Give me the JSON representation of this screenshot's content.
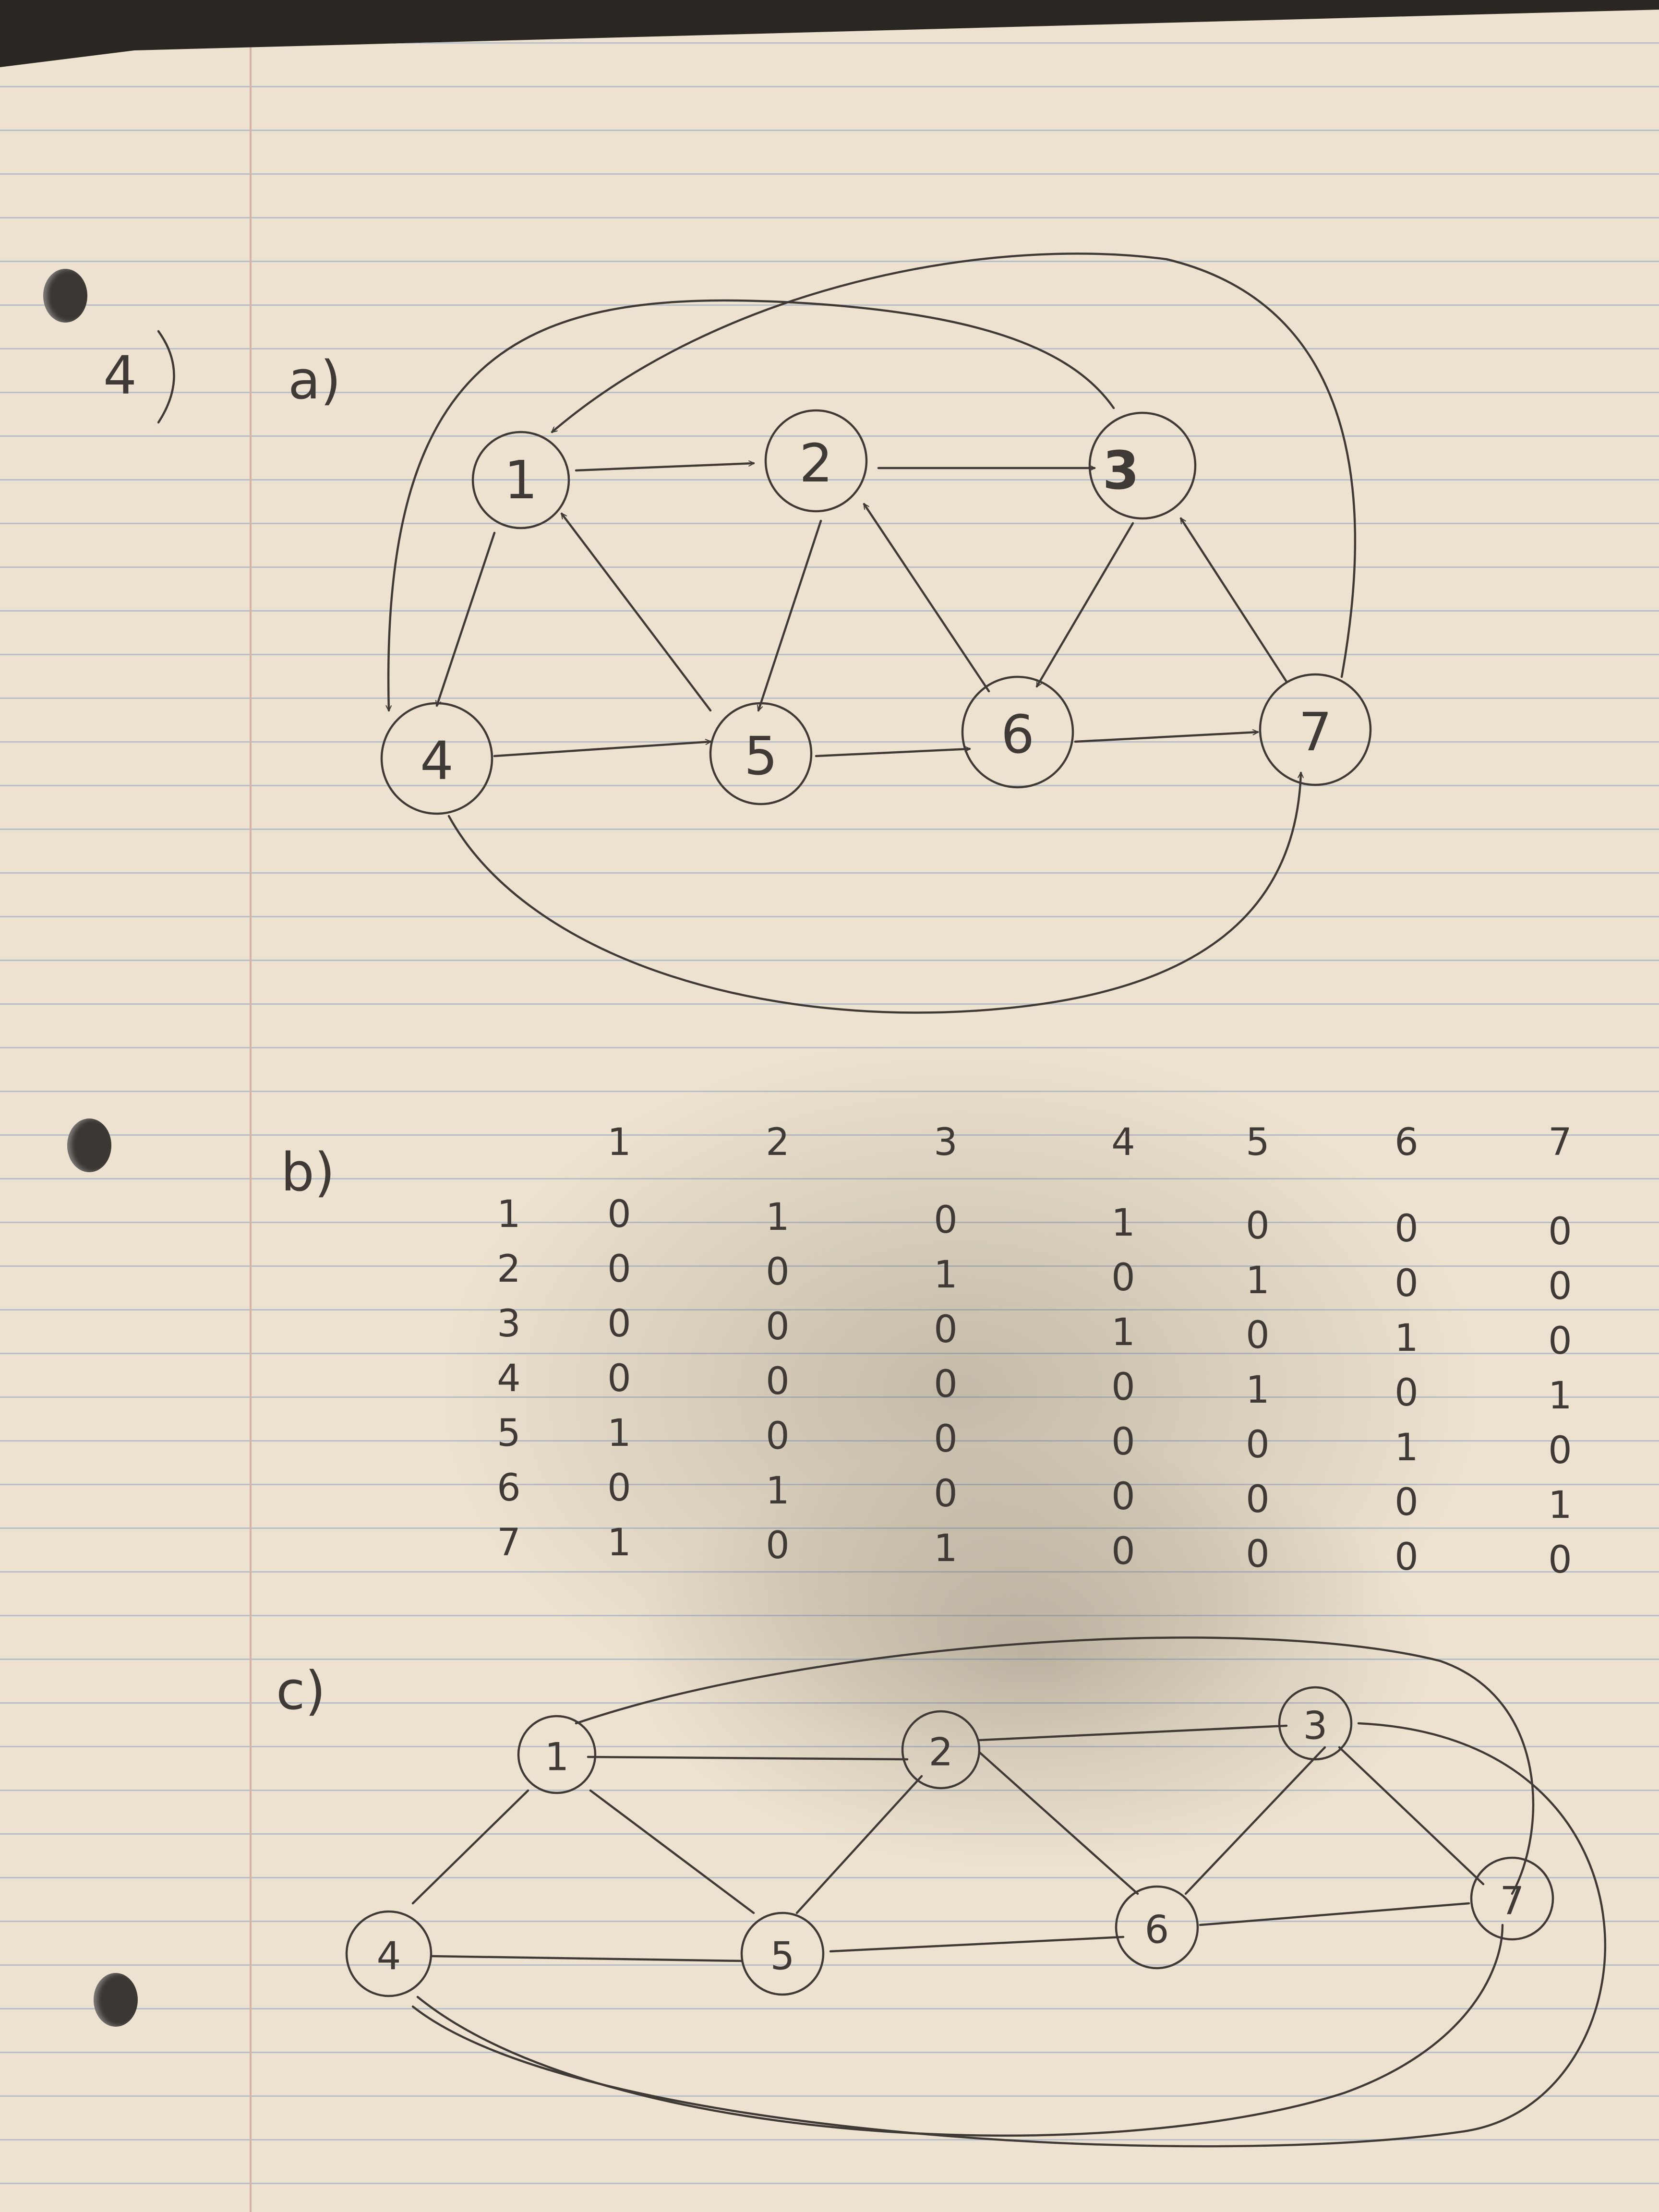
{
  "problem_number": "4",
  "parts": {
    "a": "a)",
    "b": "b)",
    "c": "c)"
  },
  "part_a": {
    "nodes": [
      "1",
      "2",
      "3",
      "4",
      "5",
      "6",
      "7"
    ],
    "edges": [
      [
        "1",
        "2"
      ],
      [
        "2",
        "3"
      ],
      [
        "1",
        "4"
      ],
      [
        "2",
        "5"
      ],
      [
        "3",
        "6"
      ],
      [
        "3",
        "4"
      ],
      [
        "4",
        "5"
      ],
      [
        "5",
        "6"
      ],
      [
        "6",
        "7"
      ],
      [
        "5",
        "1"
      ],
      [
        "6",
        "2"
      ],
      [
        "7",
        "3"
      ],
      [
        "7",
        "1"
      ],
      [
        "4",
        "7"
      ]
    ]
  },
  "part_b": {
    "col_headers": [
      "1",
      "2",
      "3",
      "4",
      "5",
      "6",
      "7"
    ],
    "rows": [
      {
        "label": "1",
        "values": [
          "0",
          "1",
          "0",
          "1",
          "0",
          "0",
          "0"
        ]
      },
      {
        "label": "2",
        "values": [
          "0",
          "0",
          "1",
          "0",
          "1",
          "0",
          "0"
        ]
      },
      {
        "label": "3",
        "values": [
          "0",
          "0",
          "0",
          "1",
          "0",
          "1",
          "0"
        ]
      },
      {
        "label": "4",
        "values": [
          "0",
          "0",
          "0",
          "0",
          "1",
          "0",
          "1"
        ]
      },
      {
        "label": "5",
        "values": [
          "1",
          "0",
          "0",
          "0",
          "0",
          "1",
          "0"
        ]
      },
      {
        "label": "6",
        "values": [
          "0",
          "1",
          "0",
          "0",
          "0",
          "0",
          "1"
        ]
      },
      {
        "label": "7",
        "values": [
          "1",
          "0",
          "1",
          "0",
          "0",
          "0",
          "0"
        ]
      }
    ]
  },
  "part_c": {
    "nodes": [
      "1",
      "2",
      "3",
      "4",
      "5",
      "6",
      "7"
    ],
    "edges": [
      [
        "1",
        "2"
      ],
      [
        "2",
        "3"
      ],
      [
        "1",
        "4"
      ],
      [
        "1",
        "5"
      ],
      [
        "2",
        "5"
      ],
      [
        "2",
        "6"
      ],
      [
        "3",
        "6"
      ],
      [
        "3",
        "7"
      ],
      [
        "4",
        "5"
      ],
      [
        "5",
        "6"
      ],
      [
        "6",
        "7"
      ],
      [
        "1",
        "7"
      ],
      [
        "4",
        "7"
      ],
      [
        "3",
        "4"
      ]
    ]
  },
  "colors": {
    "paper": "#ece2cf",
    "ink": "#3f3a36",
    "rule": "#b9bfc8",
    "margin": "#d7b3a6"
  }
}
